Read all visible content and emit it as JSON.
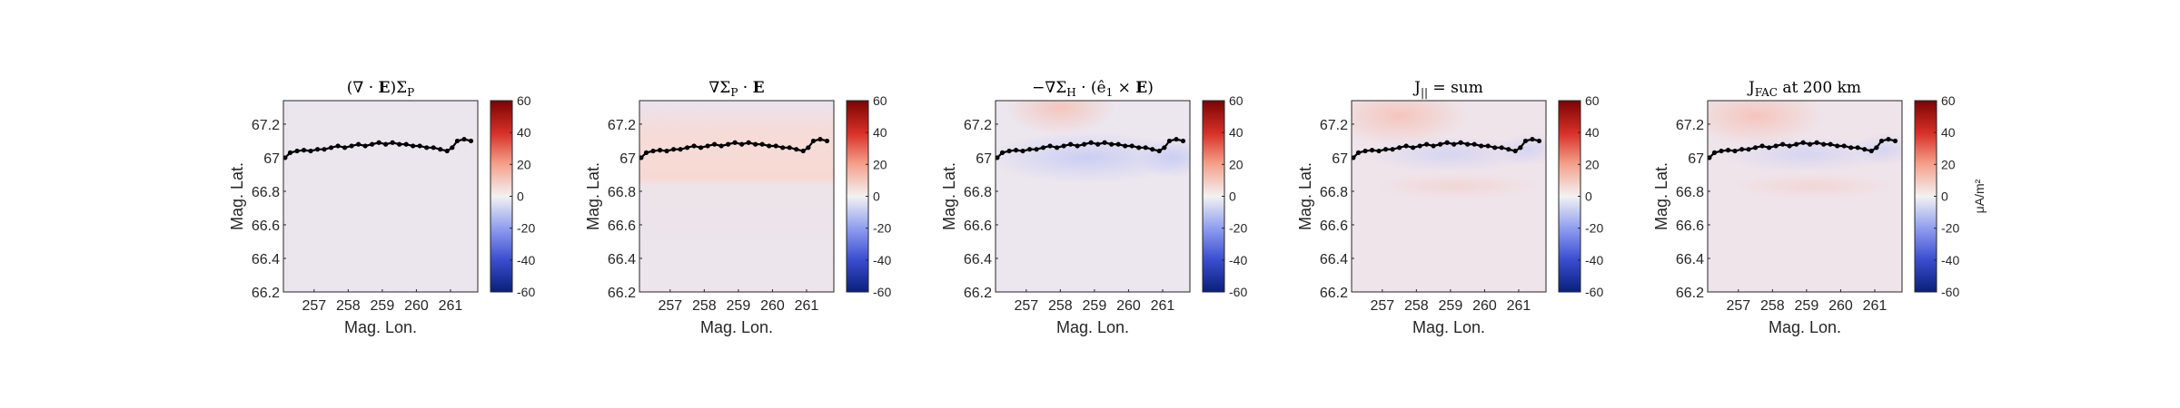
{
  "chart_data": [
    {
      "type": "heatmap",
      "title": "(∇ · E)ΣP",
      "title_main": "(∇ · ",
      "title_bold": "E",
      "title_tail": ")Σ",
      "title_sub": "P",
      "xlabel": "Mag. Lon.",
      "ylabel": "Mag. Lat.",
      "xticks": [
        257,
        258,
        259,
        260,
        261
      ],
      "yticks": [
        66.2,
        66.4,
        66.6,
        66.8,
        67,
        67.2
      ],
      "xlim": [
        256.1,
        261.8
      ],
      "ylim": [
        66.2,
        67.34
      ],
      "clim": [
        -60,
        60
      ],
      "colorbar_ticks": [
        60,
        40,
        20,
        0,
        -20,
        -40,
        -60
      ],
      "colorbar_label": "",
      "field": "uniform"
    },
    {
      "type": "heatmap",
      "title": "∇ΣP · E",
      "title_main": "∇Σ",
      "title_sub": "P",
      "title_tail": " · ",
      "title_bold": "E",
      "xlabel": "Mag. Lon.",
      "ylabel": "Mag. Lat.",
      "xticks": [
        257,
        258,
        259,
        260,
        261
      ],
      "yticks": [
        66.2,
        66.4,
        66.6,
        66.8,
        67,
        67.2
      ],
      "xlim": [
        256.1,
        261.8
      ],
      "ylim": [
        66.2,
        67.34
      ],
      "clim": [
        -60,
        60
      ],
      "colorbar_ticks": [
        60,
        40,
        20,
        0,
        -20,
        -40,
        -60
      ],
      "colorbar_label": "",
      "field": "pedersen_gradient"
    },
    {
      "type": "heatmap",
      "title": "−∇ΣH · (ê1 × E)",
      "title_main": "−∇Σ",
      "title_sub": "H",
      "title_tail": " · (ê",
      "title_sub2": "1",
      "title_tail2": " × ",
      "title_bold": "E",
      "title_end": ")",
      "xlabel": "Mag. Lon.",
      "ylabel": "Mag. Lat.",
      "xticks": [
        257,
        258,
        259,
        260,
        261
      ],
      "yticks": [
        66.2,
        66.4,
        66.6,
        66.8,
        67,
        67.2
      ],
      "xlim": [
        256.1,
        261.8
      ],
      "ylim": [
        66.2,
        67.34
      ],
      "clim": [
        -60,
        60
      ],
      "colorbar_ticks": [
        60,
        40,
        20,
        0,
        -20,
        -40,
        -60
      ],
      "colorbar_label": "",
      "field": "hall_gradient"
    },
    {
      "type": "heatmap",
      "title": "J|| = sum",
      "title_main": "J",
      "title_sub": "||",
      "title_tail": " = sum",
      "xlabel": "Mag. Lon.",
      "ylabel": "Mag. Lat.",
      "xticks": [
        257,
        258,
        259,
        260,
        261
      ],
      "yticks": [
        66.2,
        66.4,
        66.6,
        66.8,
        67,
        67.2
      ],
      "xlim": [
        256.1,
        261.8
      ],
      "ylim": [
        66.2,
        67.34
      ],
      "clim": [
        -60,
        60
      ],
      "colorbar_ticks": [
        60,
        40,
        20,
        0,
        -20,
        -40,
        -60
      ],
      "colorbar_label": "",
      "field": "sum"
    },
    {
      "type": "heatmap",
      "title": "JFAC at 200 km",
      "title_main": "J",
      "title_sub": "FAC",
      "title_tail": " at 200 km",
      "xlabel": "Mag. Lon.",
      "ylabel": "Mag. Lat.",
      "xticks": [
        257,
        258,
        259,
        260,
        261
      ],
      "yticks": [
        66.2,
        66.4,
        66.6,
        66.8,
        67,
        67.2
      ],
      "xlim": [
        256.1,
        261.8
      ],
      "ylim": [
        66.2,
        67.34
      ],
      "clim": [
        -60,
        60
      ],
      "colorbar_ticks": [
        60,
        40,
        20,
        0,
        -20,
        -40,
        -60
      ],
      "colorbar_label": "μA/m²",
      "field": "sum"
    }
  ],
  "track": {
    "lon": [
      256.15,
      256.3,
      256.5,
      256.7,
      256.9,
      257.1,
      257.3,
      257.5,
      257.7,
      257.9,
      258.1,
      258.3,
      258.5,
      258.7,
      258.9,
      259.1,
      259.3,
      259.5,
      259.7,
      259.9,
      260.1,
      260.3,
      260.5,
      260.7,
      260.9,
      261.05,
      261.2,
      261.4,
      261.6
    ],
    "lat": [
      67.0,
      67.03,
      67.04,
      67.045,
      67.04,
      67.05,
      67.05,
      67.06,
      67.07,
      67.06,
      67.07,
      67.08,
      67.07,
      67.08,
      67.09,
      67.08,
      67.09,
      67.08,
      67.08,
      67.07,
      67.07,
      67.06,
      67.06,
      67.05,
      67.04,
      67.06,
      67.1,
      67.11,
      67.1
    ]
  }
}
